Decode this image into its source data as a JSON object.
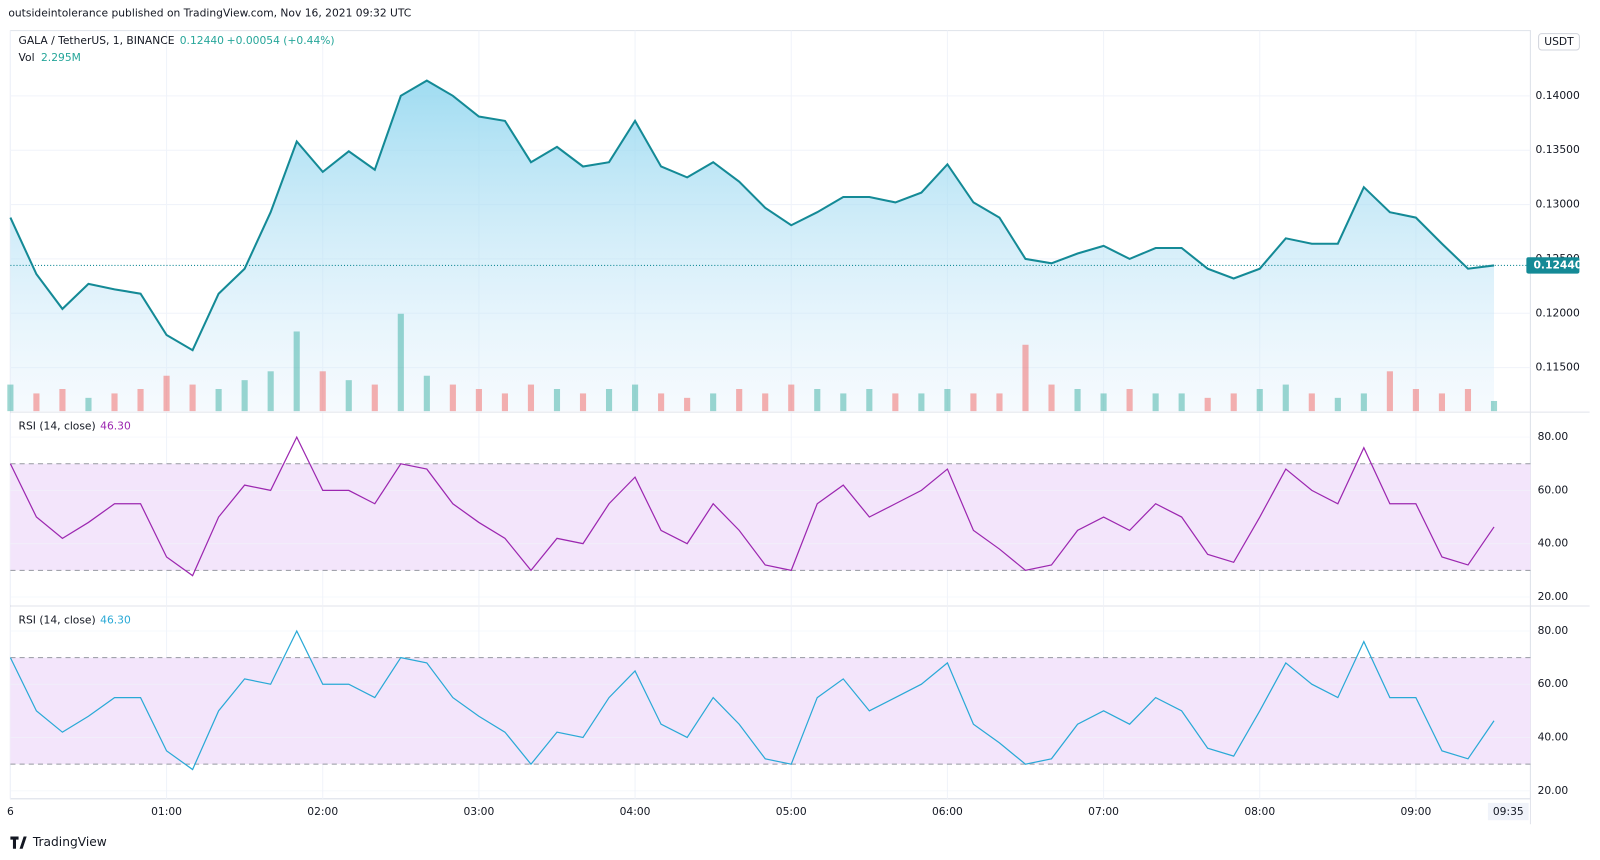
{
  "header": {
    "published": "outsideintolerance published on TradingView.com, Nov 16, 2021 09:32 UTC",
    "brand": "TradingView",
    "currency": "USDT"
  },
  "chart_data": [
    {
      "type": "area",
      "title": "GALA / TetherUS, 1, BINANCE",
      "last_label": "0.12440",
      "change_label": "+0.00054 (+0.44%)",
      "color": "#148a96",
      "fill": "#9fdcf0",
      "x": [
        "00:00",
        "00:10",
        "00:20",
        "00:30",
        "00:40",
        "00:50",
        "01:00",
        "01:10",
        "01:20",
        "01:30",
        "01:40",
        "01:50",
        "02:00",
        "02:10",
        "02:20",
        "02:30",
        "02:40",
        "02:50",
        "03:00",
        "03:10",
        "03:20",
        "03:30",
        "03:40",
        "03:50",
        "04:00",
        "04:10",
        "04:20",
        "04:30",
        "04:40",
        "04:50",
        "05:00",
        "05:10",
        "05:20",
        "05:30",
        "05:40",
        "05:50",
        "06:00",
        "06:10",
        "06:20",
        "06:30",
        "06:40",
        "06:50",
        "07:00",
        "07:10",
        "07:20",
        "07:30",
        "07:40",
        "07:50",
        "08:00",
        "08:10",
        "08:20",
        "08:30",
        "08:40",
        "08:50",
        "09:00",
        "09:10",
        "09:20",
        "09:30"
      ],
      "values": [
        0.1288,
        0.1236,
        0.1204,
        0.1227,
        0.1222,
        0.1218,
        0.118,
        0.1166,
        0.1218,
        0.1241,
        0.1293,
        0.1358,
        0.133,
        0.1349,
        0.1332,
        0.14,
        0.1414,
        0.14,
        0.1381,
        0.1377,
        0.1339,
        0.1353,
        0.1335,
        0.1339,
        0.1377,
        0.1335,
        0.1325,
        0.1339,
        0.1321,
        0.1297,
        0.1281,
        0.1293,
        0.1307,
        0.1307,
        0.1302,
        0.1311,
        0.1337,
        0.1302,
        0.1288,
        0.125,
        0.1246,
        0.1255,
        0.1262,
        0.125,
        0.126,
        0.126,
        0.1241,
        0.1232,
        0.1241,
        0.1269,
        0.1264,
        0.1264,
        0.1316,
        0.1293,
        0.1288,
        0.1264,
        0.1241,
        0.1244
      ],
      "last_value": 0.1244,
      "xlim": [
        "00:00",
        "09:44"
      ],
      "xticks": [
        {
          "value": "00:00",
          "label": "6"
        },
        "01:00",
        "02:00",
        "03:00",
        "04:00",
        "05:00",
        "06:00",
        "07:00",
        "08:00",
        "09:00"
      ],
      "x_end_label": "09:35",
      "ylim": [
        0.111,
        0.146
      ],
      "yticks": [
        {
          "value": 0.115,
          "label": "0.11500"
        },
        {
          "value": 0.12,
          "label": "0.12000"
        },
        {
          "value": 0.125,
          "label": "0.12500"
        },
        {
          "value": 0.13,
          "label": "0.13000"
        },
        {
          "value": 0.135,
          "label": "0.13500"
        },
        {
          "value": 0.14,
          "label": "0.14000"
        }
      ],
      "grid": true
    },
    {
      "type": "bar",
      "title": "Vol",
      "last_label": "2.295M",
      "up_color": "#26a69a",
      "down_color": "#ef5350",
      "values": [
        6,
        4,
        5,
        3,
        4,
        5,
        8,
        6,
        5,
        7,
        9,
        18,
        9,
        7,
        6,
        22,
        8,
        6,
        5,
        4,
        6,
        5,
        4,
        5,
        6,
        4,
        3,
        4,
        5,
        4,
        6,
        5,
        4,
        5,
        4,
        4,
        5,
        4,
        4,
        15,
        6,
        5,
        4,
        5,
        4,
        4,
        3,
        4,
        5,
        6,
        4,
        3,
        4,
        9,
        5,
        4,
        5,
        2.295
      ],
      "ylim": [
        0,
        86
      ]
    },
    {
      "type": "line",
      "title": "RSI (14, close)",
      "last_label": "46.30",
      "color": "#9c27b0",
      "band_fill": "#f3e5fb",
      "bands": [
        30,
        70
      ],
      "values": [
        70,
        50,
        42,
        48,
        55,
        55,
        35,
        28,
        50,
        62,
        60,
        80,
        60,
        60,
        55,
        70,
        68,
        55,
        48,
        42,
        30,
        42,
        40,
        55,
        65,
        45,
        40,
        55,
        45,
        32,
        30,
        55,
        62,
        50,
        55,
        60,
        68,
        45,
        38,
        30,
        32,
        45,
        50,
        45,
        55,
        50,
        36,
        33,
        50,
        68,
        60,
        55,
        76,
        55,
        55,
        35,
        32,
        46.3
      ],
      "ylim": [
        17,
        89
      ],
      "yticks": [
        {
          "value": 20,
          "label": "20.00"
        },
        {
          "value": 40,
          "label": "40.00"
        },
        {
          "value": 60,
          "label": "60.00"
        },
        {
          "value": 80,
          "label": "80.00"
        }
      ],
      "grid": true
    },
    {
      "type": "line",
      "title": "RSI (14, close)",
      "last_label": "46.30",
      "color": "#29a9d6",
      "band_fill": "#f3e5fb",
      "bands": [
        30,
        70
      ],
      "values": [
        70,
        50,
        42,
        48,
        55,
        55,
        35,
        28,
        50,
        62,
        60,
        80,
        60,
        60,
        55,
        70,
        68,
        55,
        48,
        42,
        30,
        42,
        40,
        55,
        65,
        45,
        40,
        55,
        45,
        32,
        30,
        55,
        62,
        50,
        55,
        60,
        68,
        45,
        38,
        30,
        32,
        45,
        50,
        45,
        55,
        50,
        36,
        33,
        50,
        68,
        60,
        55,
        76,
        55,
        55,
        35,
        32,
        46.3
      ],
      "ylim": [
        17,
        89
      ],
      "yticks": [
        {
          "value": 20,
          "label": "20.00"
        },
        {
          "value": 40,
          "label": "40.00"
        },
        {
          "value": 60,
          "label": "60.00"
        },
        {
          "value": 80,
          "label": "80.00"
        }
      ],
      "grid": true
    }
  ]
}
